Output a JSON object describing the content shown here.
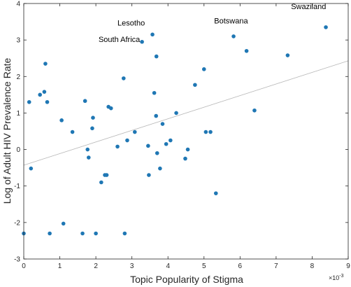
{
  "chart_data": {
    "type": "scatter",
    "xlabel": "Topic Popularity of Stigma",
    "ylabel": "Log of Adult HIV Prevalence Rate",
    "x_exponent_label": "×10",
    "x_exponent_power": "-3",
    "xlim": [
      0,
      9
    ],
    "ylim": [
      -3,
      4
    ],
    "xticks": [
      0,
      1,
      2,
      3,
      4,
      5,
      6,
      7,
      8,
      9
    ],
    "yticks": [
      -3,
      -2,
      -1,
      0,
      1,
      2,
      3,
      4
    ],
    "grid": false,
    "colors": {
      "point": "#1f77b4",
      "trend": "#b8b8b8",
      "axis": "#262626"
    },
    "points": [
      {
        "x": 0.15,
        "y": 1.3
      },
      {
        "x": 0.2,
        "y": -0.52
      },
      {
        "x": 0.45,
        "y": 1.5
      },
      {
        "x": 0.57,
        "y": 1.58
      },
      {
        "x": 0.6,
        "y": 2.35
      },
      {
        "x": 0.65,
        "y": 1.3
      },
      {
        "x": 0.0,
        "y": -2.3
      },
      {
        "x": 0.72,
        "y": -2.3
      },
      {
        "x": 1.05,
        "y": 0.8
      },
      {
        "x": 1.1,
        "y": -2.03
      },
      {
        "x": 1.35,
        "y": 0.48
      },
      {
        "x": 1.63,
        "y": -2.3
      },
      {
        "x": 1.7,
        "y": 1.33
      },
      {
        "x": 1.77,
        "y": 0.0
      },
      {
        "x": 1.8,
        "y": -0.22
      },
      {
        "x": 1.9,
        "y": 0.58
      },
      {
        "x": 1.92,
        "y": 0.87
      },
      {
        "x": 2.0,
        "y": -2.3
      },
      {
        "x": 2.15,
        "y": -0.9
      },
      {
        "x": 2.25,
        "y": -0.7
      },
      {
        "x": 2.3,
        "y": -0.7
      },
      {
        "x": 2.35,
        "y": 1.17
      },
      {
        "x": 2.42,
        "y": 1.13
      },
      {
        "x": 2.6,
        "y": 0.08
      },
      {
        "x": 2.77,
        "y": 1.95
      },
      {
        "x": 2.8,
        "y": -2.3
      },
      {
        "x": 2.87,
        "y": 0.25
      },
      {
        "x": 3.08,
        "y": 0.48
      },
      {
        "x": 3.28,
        "y": 2.95
      },
      {
        "x": 3.45,
        "y": 0.1
      },
      {
        "x": 3.47,
        "y": -0.7
      },
      {
        "x": 3.57,
        "y": 3.15
      },
      {
        "x": 3.62,
        "y": 1.55
      },
      {
        "x": 3.67,
        "y": 0.92
      },
      {
        "x": 3.68,
        "y": 2.55
      },
      {
        "x": 3.7,
        "y": -0.1
      },
      {
        "x": 3.78,
        "y": -0.52
      },
      {
        "x": 3.85,
        "y": 0.7
      },
      {
        "x": 3.95,
        "y": 0.15
      },
      {
        "x": 4.07,
        "y": 0.25
      },
      {
        "x": 4.23,
        "y": 1.0
      },
      {
        "x": 4.48,
        "y": -0.25
      },
      {
        "x": 4.55,
        "y": 0.0
      },
      {
        "x": 4.75,
        "y": 1.77
      },
      {
        "x": 5.0,
        "y": 2.2
      },
      {
        "x": 5.05,
        "y": 0.48
      },
      {
        "x": 5.18,
        "y": 0.48
      },
      {
        "x": 5.33,
        "y": -1.2
      },
      {
        "x": 5.82,
        "y": 3.1
      },
      {
        "x": 6.18,
        "y": 2.7
      },
      {
        "x": 6.4,
        "y": 1.07
      },
      {
        "x": 7.32,
        "y": 2.58
      },
      {
        "x": 8.38,
        "y": 3.35
      }
    ],
    "trendline": {
      "x": [
        0,
        9
      ],
      "y": [
        -0.43,
        2.43
      ]
    },
    "annotations": [
      {
        "text": "Lesotho",
        "x": 2.98,
        "y": 3.4
      },
      {
        "text": "Botswana",
        "x": 5.75,
        "y": 3.45
      },
      {
        "text": "Swaziland",
        "x": 7.9,
        "y": 3.85
      },
      {
        "text": "South Africa",
        "x": 2.65,
        "y": 2.95
      }
    ]
  }
}
